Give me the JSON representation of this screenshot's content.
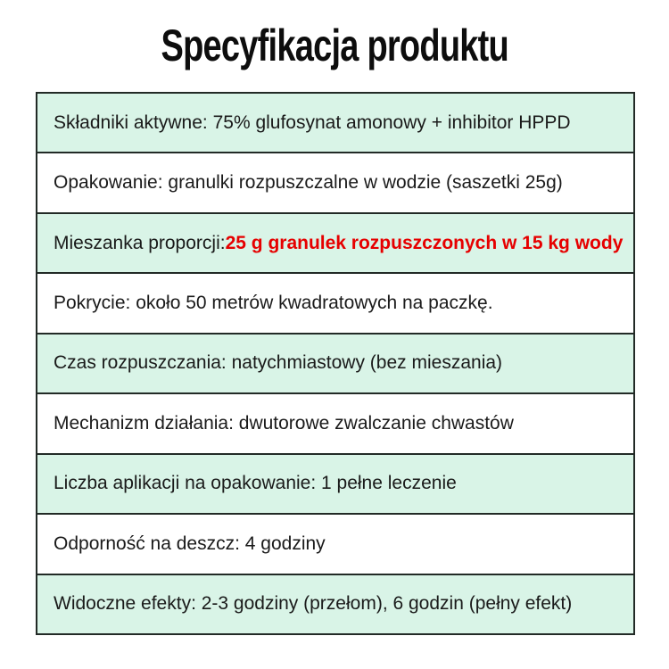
{
  "title": "Specyfikacja produktu",
  "colors": {
    "row_alt_background": "#d9f4e7",
    "row_plain_background": "#ffffff",
    "border": "#222a26",
    "text": "#1a1a1a",
    "highlight": "#e60000"
  },
  "spec_table": {
    "rows": [
      {
        "text": "Składniki aktywne: 75% glufosynat amonowy + inhibitor HPPD",
        "highlight": "",
        "shaded": true
      },
      {
        "text": "Opakowanie: granulki rozpuszczalne w wodzie (saszetki 25g)",
        "highlight": "",
        "shaded": false
      },
      {
        "text": "Mieszanka proporcji: ",
        "highlight": "25 g granulek rozpuszczonych w 15 kg wody",
        "shaded": true
      },
      {
        "text": "Pokrycie: około 50 metrów kwadratowych na paczkę.",
        "highlight": "",
        "shaded": false
      },
      {
        "text": "Czas rozpuszczania: natychmiastowy (bez mieszania)",
        "highlight": "",
        "shaded": true
      },
      {
        "text": "Mechanizm działania: dwutorowe zwalczanie chwastów",
        "highlight": "",
        "shaded": false
      },
      {
        "text": "Liczba aplikacji na opakowanie: 1 pełne leczenie",
        "highlight": "",
        "shaded": true
      },
      {
        "text": "Odporność na deszcz: 4 godziny",
        "highlight": "",
        "shaded": false
      },
      {
        "text": "Widoczne efekty: 2-3 godziny (przełom), 6 godzin (pełny efekt)",
        "highlight": "",
        "shaded": true
      }
    ]
  }
}
